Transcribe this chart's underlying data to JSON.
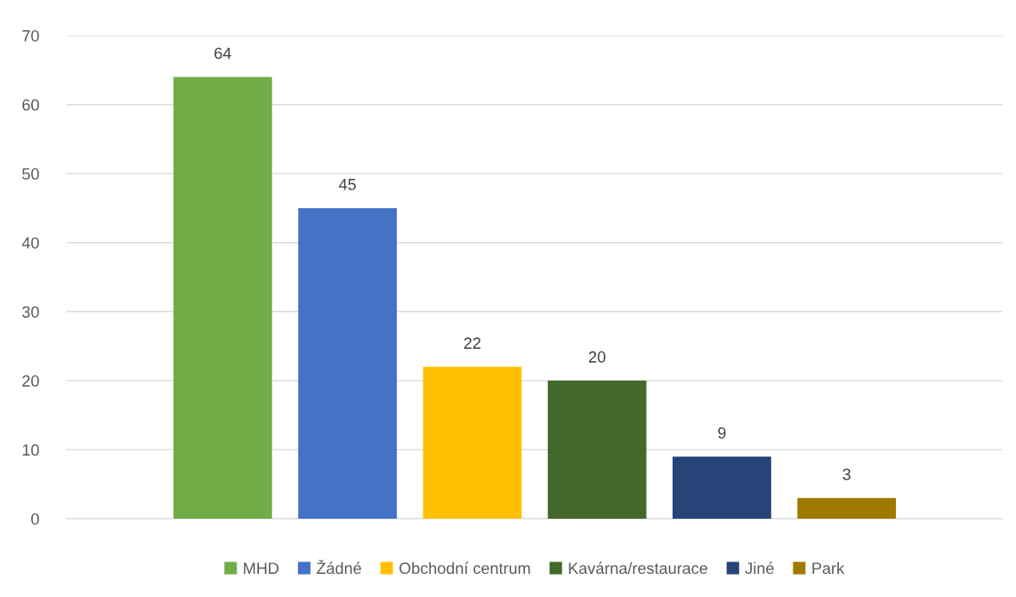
{
  "chart_data": {
    "type": "bar",
    "categories": [
      null
    ],
    "series": [
      {
        "name": "MHD",
        "color": "#70ad47",
        "values": [
          64
        ]
      },
      {
        "name": "Žádné",
        "color": "#4472c4",
        "values": [
          45
        ]
      },
      {
        "name": "Obchodní centrum",
        "color": "#ffc000",
        "values": [
          22
        ]
      },
      {
        "name": "Kavárna/restaurace",
        "color": "#43682b",
        "values": [
          20
        ]
      },
      {
        "name": "Jiné",
        "color": "#264478",
        "values": [
          9
        ]
      },
      {
        "name": "Park",
        "color": "#9e7a00",
        "values": [
          3
        ]
      }
    ],
    "ylim": [
      0,
      70
    ],
    "yticks": [
      0,
      10,
      20,
      30,
      40,
      50,
      60,
      70
    ],
    "grid": "y",
    "legend": "bottom",
    "data_labels": true
  }
}
